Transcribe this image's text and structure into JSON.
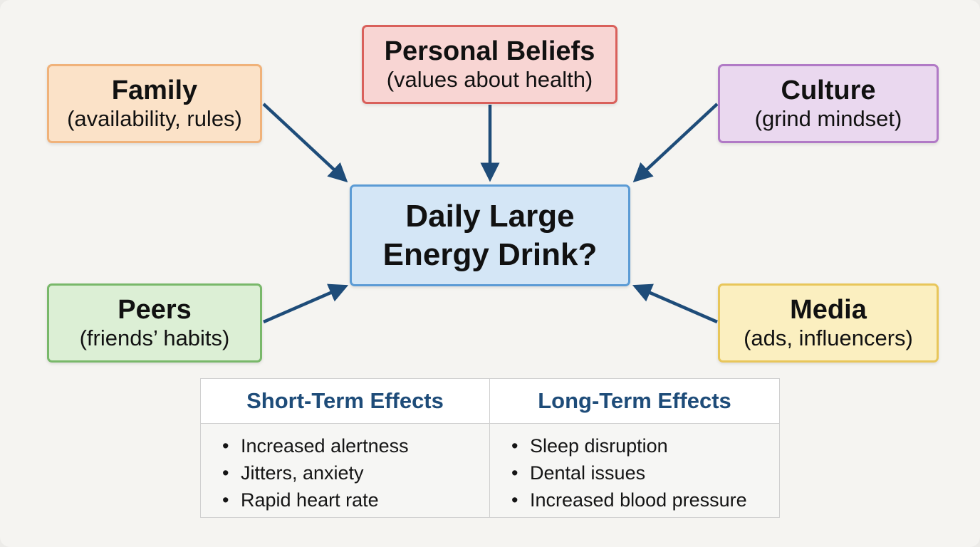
{
  "colors": {
    "arrow": "#1e4c79",
    "family": "#f0b27a",
    "personal_beliefs": "#d9605b",
    "culture": "#b17ac6",
    "peers": "#79b86a",
    "media": "#e8c65a",
    "center": "#5b9bd5"
  },
  "center": {
    "line1": "Daily Large",
    "line2": "Energy Drink?"
  },
  "nodes": {
    "family": {
      "title": "Family",
      "subtitle": "(availability, rules)"
    },
    "personal_beliefs": {
      "title": "Personal Beliefs",
      "subtitle": "(values about health)"
    },
    "culture": {
      "title": "Culture",
      "subtitle": "(grind mindset)"
    },
    "peers": {
      "title": "Peers",
      "subtitle": "(friends’ habits)"
    },
    "media": {
      "title": "Media",
      "subtitle": "(ads, influencers)"
    }
  },
  "effects": {
    "short_term": {
      "heading": "Short-Term Effects",
      "items": [
        "Increased alertness",
        "Jitters, anxiety",
        "Rapid heart rate"
      ]
    },
    "long_term": {
      "heading": "Long-Term Effects",
      "items": [
        "Sleep disruption",
        "Dental issues",
        "Increased blood pressure"
      ]
    }
  }
}
